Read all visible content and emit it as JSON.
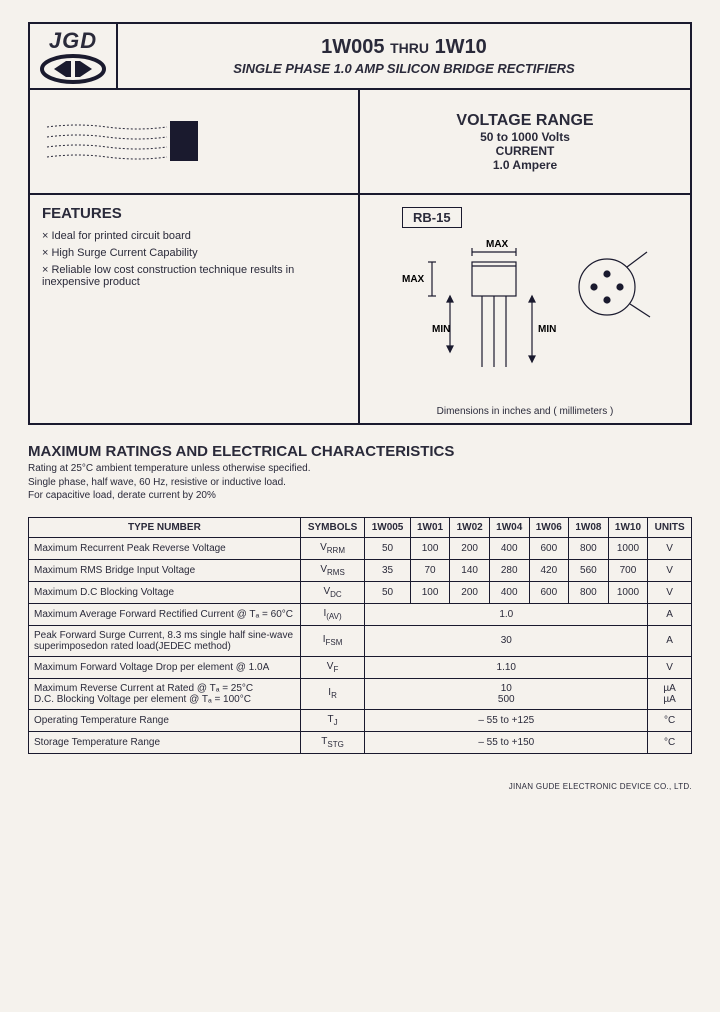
{
  "logo": {
    "text": "JGD"
  },
  "title": {
    "main_a": "1W005",
    "thru": "THRU",
    "main_b": "1W10",
    "sub": "SINGLE PHASE 1.0 AMP SILICON BRIDGE RECTIFIERS"
  },
  "voltage_range": {
    "heading": "VOLTAGE RANGE",
    "line1": "50 to 1000 Volts",
    "line2": "CURRENT",
    "line3": "1.0 Ampere"
  },
  "features": {
    "heading": "FEATURES",
    "items": [
      "Ideal for printed circuit board",
      "High Surge Current Capability",
      "Reliable low cost construction technique results in inexpensive product"
    ]
  },
  "package": {
    "label": "RB-15",
    "note": "Dimensions in inches and ( millimeters )",
    "max": "MAX",
    "min": "MIN"
  },
  "ratings": {
    "heading": "MAXIMUM RATINGS AND ELECTRICAL CHARACTERISTICS",
    "note1": "Rating at 25°C ambient temperature unless otherwise specified.",
    "note2": "Single phase, half wave, 60 Hz, resistive or inductive load.",
    "note3": "For capacitive load, derate current by 20%"
  },
  "table": {
    "head": {
      "type": "TYPE NUMBER",
      "sym": "SYMBOLS",
      "c": [
        "1W005",
        "1W01",
        "1W02",
        "1W04",
        "1W06",
        "1W08",
        "1W10"
      ],
      "u": "UNITS"
    },
    "rows": [
      {
        "p": "Maximum Recurrent Peak Reverse Voltage",
        "s": "V",
        "ss": "RRM",
        "v": [
          "50",
          "100",
          "200",
          "400",
          "600",
          "800",
          "1000"
        ],
        "u": "V"
      },
      {
        "p": "Maximum RMS Bridge Input Voltage",
        "s": "V",
        "ss": "RMS",
        "v": [
          "35",
          "70",
          "140",
          "280",
          "420",
          "560",
          "700"
        ],
        "u": "V"
      },
      {
        "p": "Maximum D.C Blocking Voltage",
        "s": "V",
        "ss": "DC",
        "v": [
          "50",
          "100",
          "200",
          "400",
          "600",
          "800",
          "1000"
        ],
        "u": "V"
      },
      {
        "p": "Maximum Average Forward Rectified Current @ Tₐ = 60°C",
        "s": "I",
        "ss": "(AV)",
        "span": "1.0",
        "u": "A"
      },
      {
        "p": "Peak Forward Surge Current, 8.3 ms single half sine-wave superimposedon rated load(JEDEC method)",
        "s": "I",
        "ss": "FSM",
        "span": "30",
        "u": "A"
      },
      {
        "p": "Maximum Forward Voltage Drop per element @ 1.0A",
        "s": "V",
        "ss": "F",
        "span": "1.10",
        "u": "V"
      },
      {
        "p": "Maximum Reverse Current at Rated @ Tₐ = 25°C<br>D.C. Blocking Voltage per element @ Tₐ = 100°C",
        "s": "I",
        "ss": "R",
        "span": "10<br>500",
        "u": "µA<br>µA"
      },
      {
        "p": "Operating Temperature Range",
        "s": "T",
        "ss": "J",
        "span": "– 55 to +125",
        "u": "°C"
      },
      {
        "p": "Storage Temperature Range",
        "s": "T",
        "ss": "STG",
        "span": "– 55 to +150",
        "u": "°C"
      }
    ]
  },
  "footer": "JINAN GUDE ELECTRONIC DEVICE CO., LTD.",
  "colors": {
    "ink": "#1a1a2e",
    "paper": "#f5f2ed"
  }
}
